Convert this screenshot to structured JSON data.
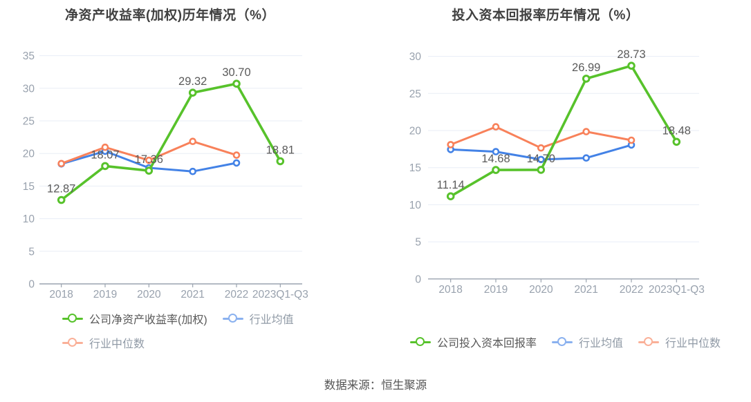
{
  "page": {
    "source": "数据来源：恒生聚源"
  },
  "colors": {
    "company": "#57c22b",
    "industry_mean": "#4382e6",
    "industry_median": "#f8815a"
  },
  "chart_data": [
    {
      "type": "line",
      "title": "净资产收益率(加权)历年情况（%）",
      "xlabel": "",
      "ylabel": "",
      "grid": true,
      "legend_position": "bottom",
      "categories": [
        "2018",
        "2019",
        "2020",
        "2021",
        "2022",
        "2023Q1-Q3"
      ],
      "ylim": [
        0,
        35
      ],
      "yticks": [
        0,
        5,
        10,
        15,
        20,
        25,
        30,
        35
      ],
      "series": [
        {
          "name": "公司净资产收益率(加权)",
          "color": "#57c22b",
          "labeled": true,
          "values": [
            12.87,
            18.07,
            17.36,
            29.32,
            30.7,
            18.81
          ]
        },
        {
          "name": "行业均值",
          "color": "#4382e6",
          "labeled": false,
          "values": [
            18.4,
            20.35,
            17.8,
            17.25,
            18.55,
            null
          ]
        },
        {
          "name": "行业中位数",
          "color": "#f8815a",
          "labeled": false,
          "values": [
            18.45,
            20.95,
            18.95,
            21.85,
            19.75,
            null
          ]
        }
      ],
      "legend_rows": [
        [
          0,
          1
        ],
        [
          2
        ]
      ]
    },
    {
      "type": "line",
      "title": "投入资本回报率历年情况（%）",
      "xlabel": "",
      "ylabel": "",
      "grid": true,
      "legend_position": "bottom",
      "categories": [
        "2018",
        "2019",
        "2020",
        "2021",
        "2022",
        "2023Q1-Q3"
      ],
      "ylim": [
        0,
        30
      ],
      "yticks": [
        0,
        5,
        10,
        15,
        20,
        25,
        30
      ],
      "series": [
        {
          "name": "公司投入资本回报率",
          "color": "#57c22b",
          "labeled": true,
          "values": [
            11.14,
            14.68,
            14.7,
            26.99,
            28.73,
            18.48
          ]
        },
        {
          "name": "行业均值",
          "color": "#4382e6",
          "labeled": false,
          "values": [
            17.45,
            17.15,
            16.1,
            16.3,
            18.05,
            null
          ]
        },
        {
          "name": "行业中位数",
          "color": "#f8815a",
          "labeled": false,
          "values": [
            18.1,
            20.5,
            17.65,
            19.85,
            18.7,
            null
          ]
        }
      ],
      "legend_rows": [
        [
          0,
          1,
          2
        ]
      ]
    }
  ]
}
